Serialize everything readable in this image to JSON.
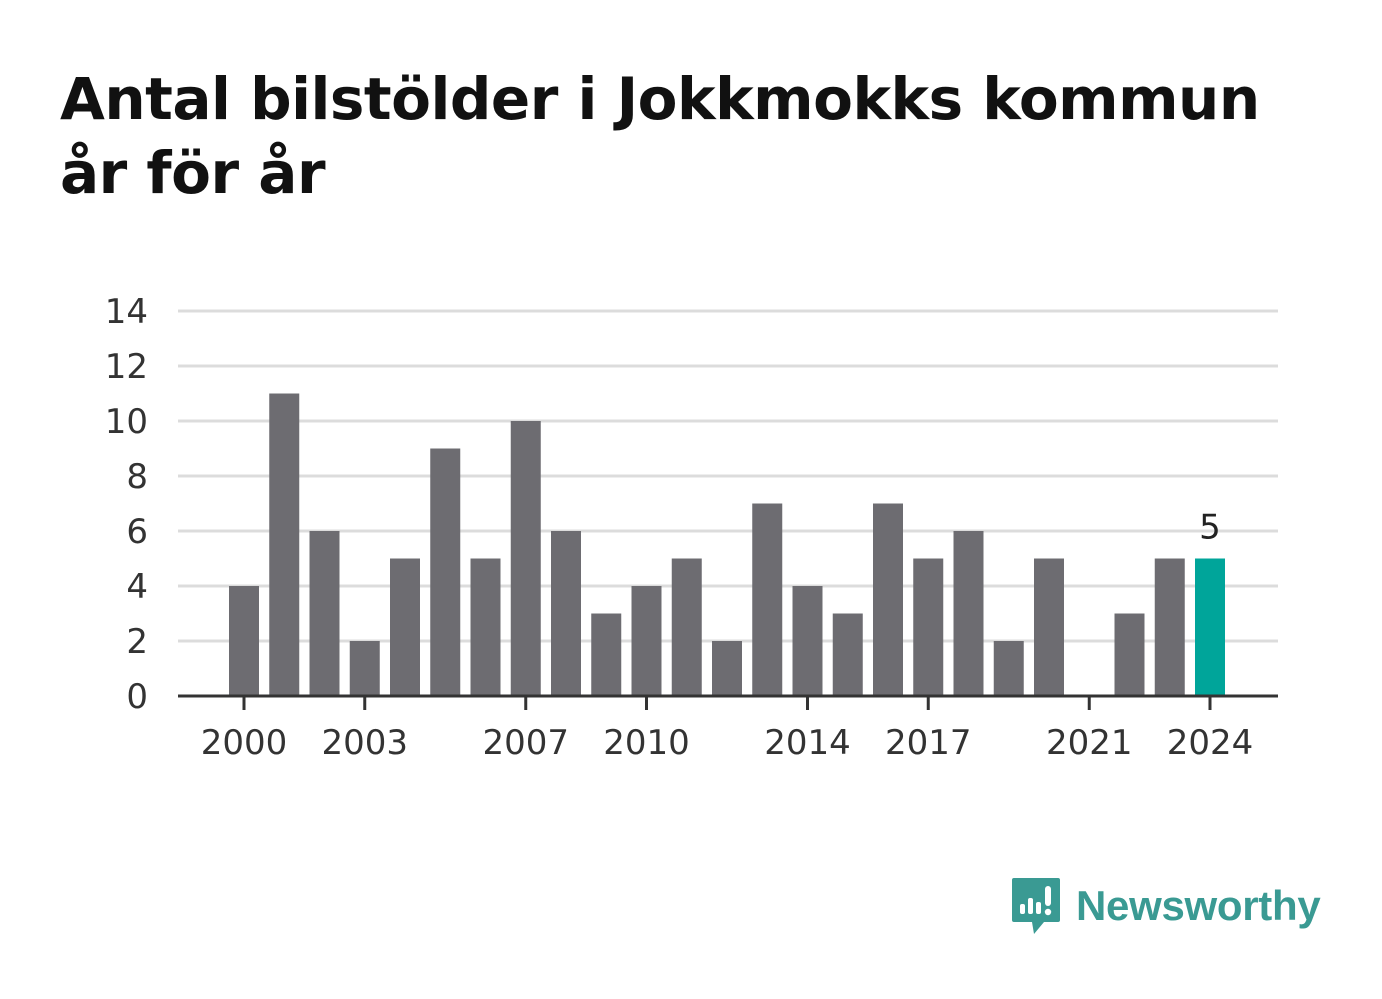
{
  "title_line1": "Antal bilstölder i Jokkmokks kommun",
  "title_line2": "år för år",
  "brand": {
    "name": "Newsworthy",
    "icon": "newsworthy-logo-icon",
    "color": "#3a9a93"
  },
  "colors": {
    "bar": "#6d6c71",
    "highlight": "#00a59a",
    "grid": "#dcdcdc",
    "axis": "#333333",
    "text": "#333333"
  },
  "chart_data": {
    "type": "bar",
    "categories": [
      "2000",
      "2001",
      "2002",
      "2003",
      "2004",
      "2005",
      "2006",
      "2007",
      "2008",
      "2009",
      "2010",
      "2011",
      "2012",
      "2013",
      "2014",
      "2015",
      "2016",
      "2017",
      "2018",
      "2019",
      "2020",
      "2021",
      "2022",
      "2023",
      "2024"
    ],
    "values": [
      4,
      11,
      6,
      2,
      5,
      9,
      5,
      10,
      6,
      3,
      4,
      5,
      2,
      7,
      4,
      3,
      7,
      5,
      6,
      2,
      5,
      0,
      3,
      5,
      5
    ],
    "x_tick_labels": [
      "2000",
      "2003",
      "2007",
      "2010",
      "2014",
      "2017",
      "2021",
      "2024"
    ],
    "y_ticks": [
      0,
      2,
      4,
      6,
      8,
      10,
      12,
      14
    ],
    "ylim": [
      0,
      14
    ],
    "highlight_index": 24,
    "highlight_label": "5",
    "xlabel": "",
    "ylabel": "",
    "grid": true
  }
}
